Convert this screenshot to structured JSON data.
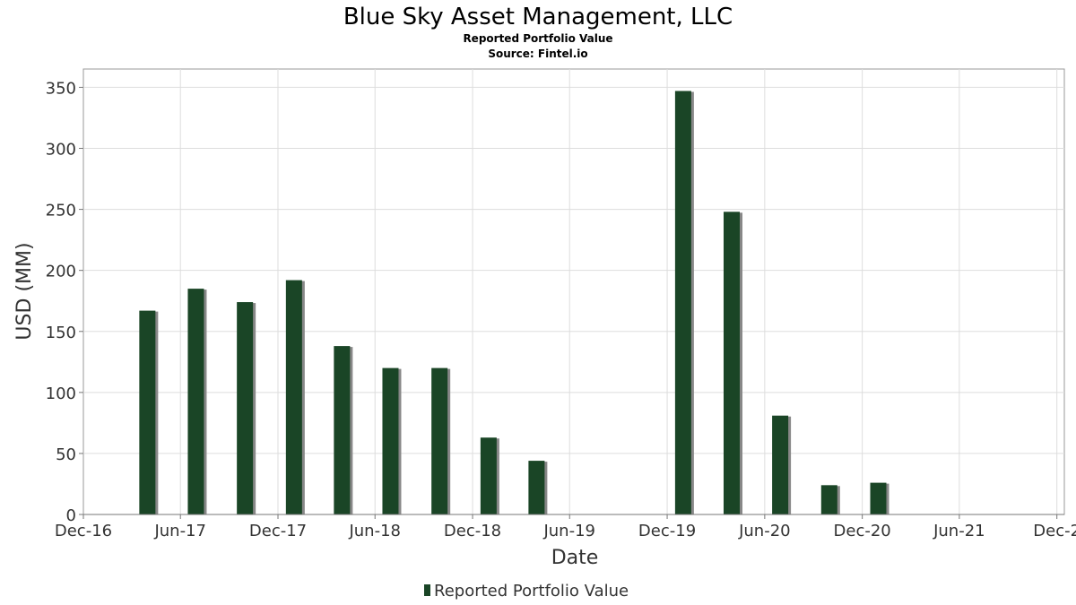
{
  "chart_data": {
    "type": "bar",
    "title": "Blue Sky Asset Management, LLC",
    "subtitles": [
      "Reported Portfolio Value",
      "Source: Fintel.io"
    ],
    "xlabel": "Date",
    "ylabel": "USD (MM)",
    "ylim": [
      0,
      365
    ],
    "yticks": [
      0,
      50,
      100,
      150,
      200,
      250,
      300,
      350
    ],
    "xlim": [
      "2016-12-01",
      "2021-12-15"
    ],
    "xticks": [
      {
        "label": "Dec-16",
        "date": "2016-12-01"
      },
      {
        "label": "Jun-17",
        "date": "2017-06-01"
      },
      {
        "label": "Dec-17",
        "date": "2017-12-01"
      },
      {
        "label": "Jun-18",
        "date": "2018-06-01"
      },
      {
        "label": "Dec-18",
        "date": "2018-12-01"
      },
      {
        "label": "Jun-19",
        "date": "2019-06-01"
      },
      {
        "label": "Dec-19",
        "date": "2019-12-01"
      },
      {
        "label": "Jun-20",
        "date": "2020-06-01"
      },
      {
        "label": "Dec-20",
        "date": "2020-12-01"
      },
      {
        "label": "Jun-21",
        "date": "2021-06-01"
      },
      {
        "label": "Dec-2",
        "date": "2021-12-01"
      }
    ],
    "grid": true,
    "legend_position": "bottom-center",
    "series": [
      {
        "name": "Reported Portfolio Value",
        "color": "#1a4526",
        "points": [
          {
            "date": "2017-03-31",
            "value": 167
          },
          {
            "date": "2017-06-30",
            "value": 185
          },
          {
            "date": "2017-09-30",
            "value": 174
          },
          {
            "date": "2017-12-31",
            "value": 192
          },
          {
            "date": "2018-03-31",
            "value": 138
          },
          {
            "date": "2018-06-30",
            "value": 120
          },
          {
            "date": "2018-09-30",
            "value": 120
          },
          {
            "date": "2018-12-31",
            "value": 63
          },
          {
            "date": "2019-03-31",
            "value": 44
          },
          {
            "date": "2019-12-31",
            "value": 347
          },
          {
            "date": "2020-03-31",
            "value": 248
          },
          {
            "date": "2020-06-30",
            "value": 81
          },
          {
            "date": "2020-09-30",
            "value": 24
          },
          {
            "date": "2020-12-31",
            "value": 26
          }
        ]
      }
    ]
  }
}
